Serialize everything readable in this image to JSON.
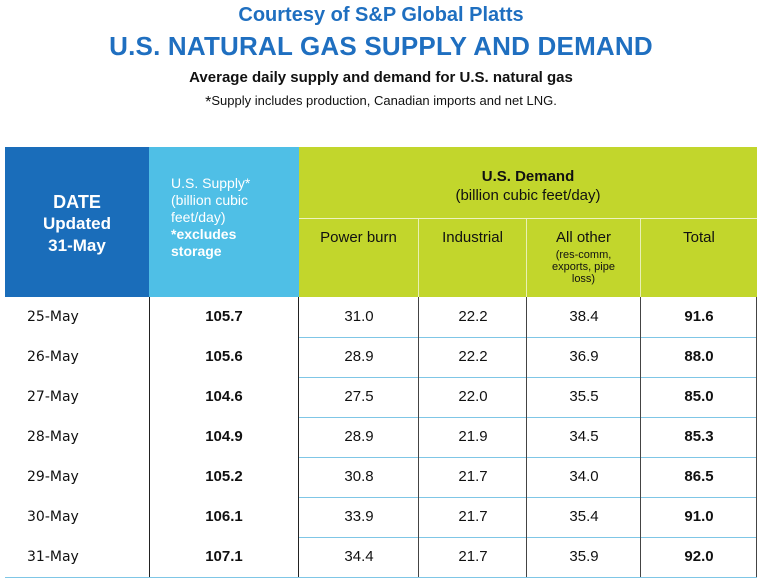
{
  "header": {
    "courtesy": "Courtesy of S&P Global Platts",
    "title": "U.S. NATURAL GAS SUPPLY AND DEMAND",
    "subtitle": "Average daily supply and demand for U.S. natural gas",
    "note_asterisk": "*",
    "note": "Supply includes production, Canadian imports and net LNG."
  },
  "table": {
    "date_header": {
      "line1": "DATE",
      "line2": "Updated",
      "line3": "31-May"
    },
    "supply_header": {
      "line1": "U.S. Supply*",
      "line2": "(billion cubic",
      "line3": "feet/day)",
      "line4": "*excludes",
      "line5": "storage"
    },
    "demand_header": {
      "line1": "U.S. Demand",
      "line2": "(billion cubic feet/day)"
    },
    "columns": {
      "power_burn": "Power burn",
      "industrial": "Industrial",
      "all_other": "All other",
      "all_other_detail": "(res-comm, exports, pipe loss)",
      "total": "Total"
    },
    "rows": [
      {
        "date": "25-May",
        "supply": "105.7",
        "power_burn": "31.0",
        "industrial": "22.2",
        "all_other": "38.4",
        "total": "91.6"
      },
      {
        "date": "26-May",
        "supply": "105.6",
        "power_burn": "28.9",
        "industrial": "22.2",
        "all_other": "36.9",
        "total": "88.0"
      },
      {
        "date": "27-May",
        "supply": "104.6",
        "power_burn": "27.5",
        "industrial": "22.0",
        "all_other": "35.5",
        "total": "85.0"
      },
      {
        "date": "28-May",
        "supply": "104.9",
        "power_burn": "28.9",
        "industrial": "21.9",
        "all_other": "34.5",
        "total": "85.3"
      },
      {
        "date": "29-May",
        "supply": "105.2",
        "power_burn": "30.8",
        "industrial": "21.7",
        "all_other": "34.0",
        "total": "86.5"
      },
      {
        "date": "30-May",
        "supply": "106.1",
        "power_burn": "33.9",
        "industrial": "21.7",
        "all_other": "35.4",
        "total": "91.0"
      },
      {
        "date": "31-May",
        "supply": "107.1",
        "power_burn": "34.4",
        "industrial": "21.7",
        "all_other": "35.9",
        "total": "92.0"
      }
    ]
  },
  "colors": {
    "title_blue": "#1f6fc0",
    "date_header_bg": "#1a6dba",
    "supply_header_bg": "#4fbfe6",
    "demand_header_bg": "#c2d62c"
  }
}
